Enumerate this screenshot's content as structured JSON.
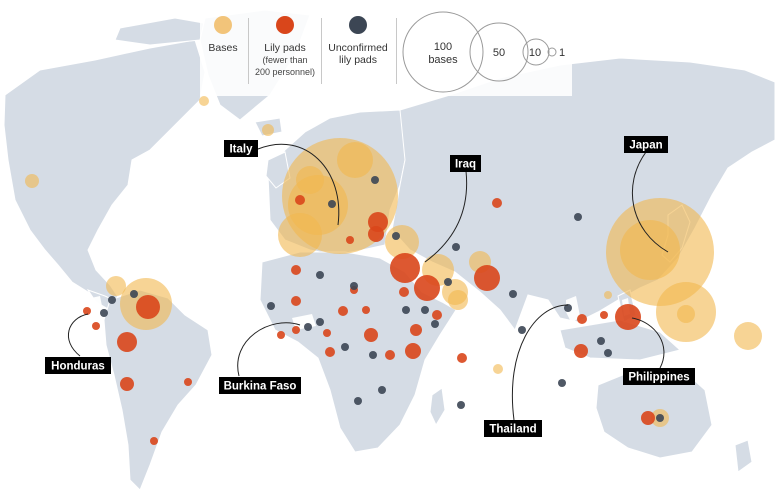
{
  "legend": {
    "bases": "Bases",
    "lily_pads": "Lily pads",
    "lily_pads_note_1": "(fewer than",
    "lily_pads_note_2": "200 personnel)",
    "unconfirmed_1": "Unconfirmed",
    "unconfirmed_2": "lily pads",
    "size_100_a": "100",
    "size_100_b": "bases",
    "size_50": "50",
    "size_10": "10",
    "size_1": "1"
  },
  "colors": {
    "base": "#f2b74e",
    "lily_pad": "#d9461b",
    "unconfirmed": "#3c4654",
    "land": "#d5dce5",
    "highlight": "#ffffff",
    "label_bg": "#000000",
    "water": "#ffffff"
  },
  "labels": [
    {
      "id": "italy",
      "text": "Italy"
    },
    {
      "id": "iraq",
      "text": "Iraq"
    },
    {
      "id": "japan",
      "text": "Japan"
    },
    {
      "id": "honduras",
      "text": "Honduras"
    },
    {
      "id": "burkina",
      "text": "Burkina Faso"
    },
    {
      "id": "thailand",
      "text": "Thailand"
    },
    {
      "id": "philippines",
      "text": "Philippines"
    }
  ]
}
